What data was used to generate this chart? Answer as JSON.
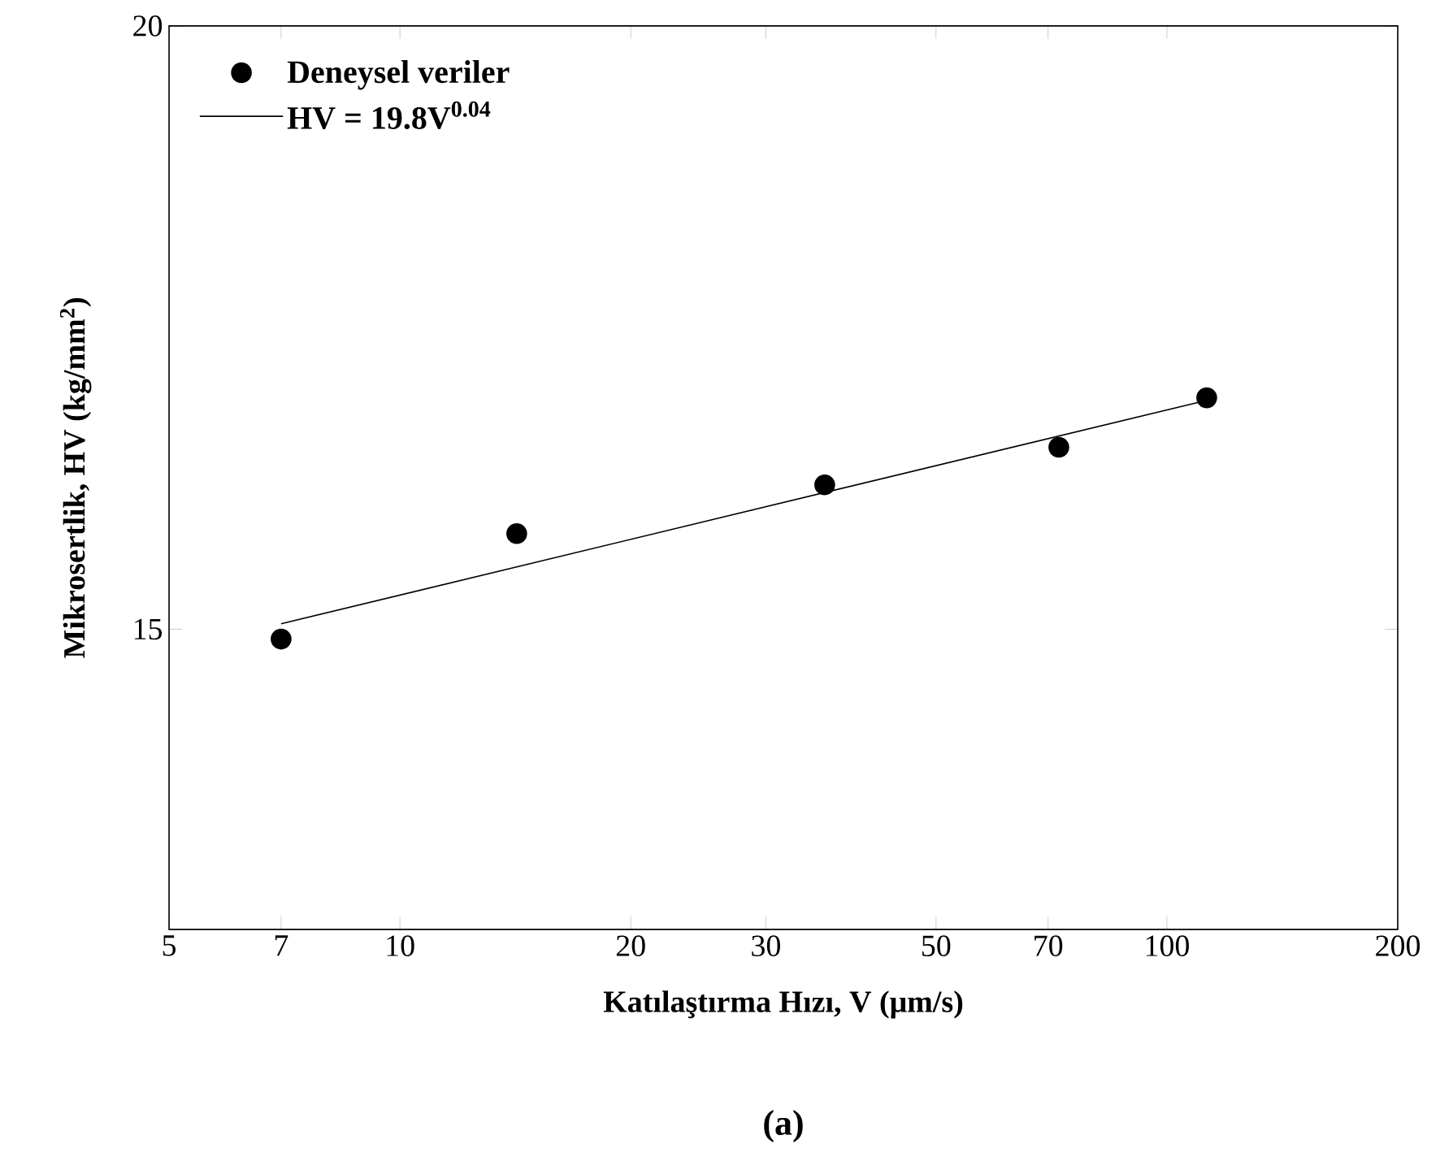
{
  "chart_data": {
    "type": "scatter",
    "xlabel": "Katılaştırma Hızı, V (μm/s)",
    "ylabel": "Mikrosertlik, HV (kg/mm$^{2}$)",
    "annotations": [
      "(a)"
    ],
    "log": "xy",
    "xlim": [
      5,
      200
    ],
    "ylim": [
      13,
      20
    ],
    "xticks": [
      5,
      7,
      10,
      20,
      30,
      50,
      70,
      100,
      200
    ],
    "yticks": [
      15,
      20
    ],
    "legend": "top left",
    "series": [
      {
        "name": "Deneysel veriler",
        "color": "#000000",
        "marker": "circle",
        "x": [
          7,
          14.2,
          35.8,
          72.3,
          112.7
        ],
        "values": [
          14.93,
          15.7,
          16.07,
          16.36,
          16.75
        ]
      },
      {
        "name": "HV = 19.8V$^{0.04}$",
        "type": "line",
        "color": "#000000",
        "marker": "none",
        "line_style": "solid",
        "x": [
          7,
          112.7
        ],
        "values": [
          15.04,
          16.73
        ]
      }
    ]
  }
}
